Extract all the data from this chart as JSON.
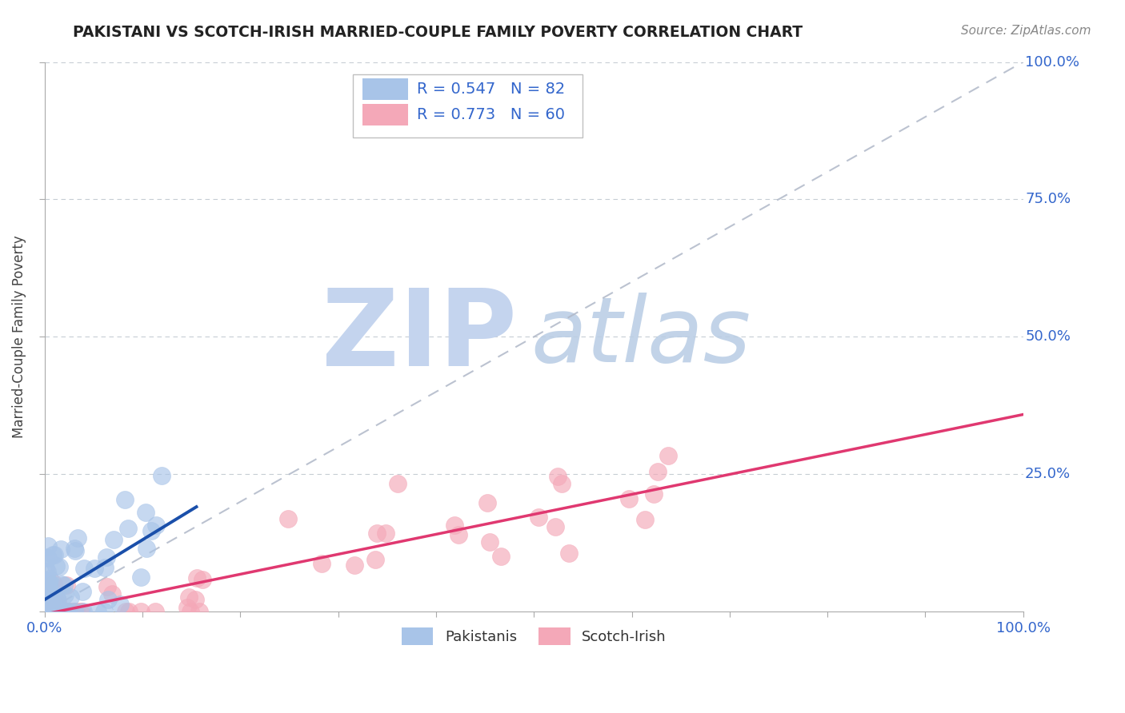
{
  "title": "PAKISTANI VS SCOTCH-IRISH MARRIED-COUPLE FAMILY POVERTY CORRELATION CHART",
  "source_text": "Source: ZipAtlas.com",
  "ylabel": "Married-Couple Family Poverty",
  "xlim": [
    0,
    1
  ],
  "ylim": [
    0,
    1
  ],
  "xtick_positions": [
    0,
    0.1,
    0.2,
    0.3,
    0.4,
    0.5,
    0.6,
    0.7,
    0.8,
    0.9,
    1.0
  ],
  "xtick_labels_show": [
    "0.0%",
    "",
    "",
    "",
    "",
    "",
    "",
    "",
    "",
    "",
    "100.0%"
  ],
  "ytick_positions": [
    0.0,
    0.25,
    0.5,
    0.75,
    1.0
  ],
  "ytick_labels": [
    "",
    "25.0%",
    "50.0%",
    "75.0%",
    "100.0%"
  ],
  "background_color": "#ffffff",
  "pakistani_color": "#a8c4e8",
  "scotch_irish_color": "#f4a8b8",
  "pakistani_line_color": "#1a4faa",
  "scotch_irish_line_color": "#e03870",
  "legend_text_color": "#3366cc",
  "pakistani_R": 0.547,
  "pakistani_N": 82,
  "scotch_irish_R": 0.773,
  "scotch_irish_N": 60,
  "grid_color": "#c0c8d0",
  "watermark_zip_color": "#c4d4ee",
  "watermark_atlas_color": "#b8cce4",
  "title_color": "#222222",
  "source_color": "#888888",
  "axis_label_color": "#444444",
  "tick_label_color": "#3366cc",
  "spine_color": "#aaaaaa",
  "ref_line_color": "#b0b8c8"
}
